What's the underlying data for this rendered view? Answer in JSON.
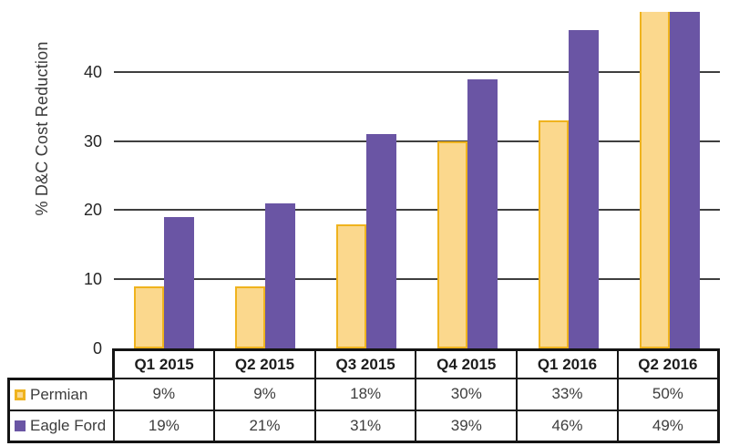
{
  "chart_data": {
    "type": "bar",
    "categories": [
      "Q1 2015",
      "Q2 2015",
      "Q3 2015",
      "Q4 2015",
      "Q1 2016",
      "Q2 2016"
    ],
    "series": [
      {
        "name": "Permian",
        "values": [
          9,
          9,
          18,
          30,
          33,
          50
        ]
      },
      {
        "name": "Eagle Ford",
        "values": [
          19,
          21,
          31,
          39,
          46,
          49
        ]
      }
    ],
    "title": "",
    "xlabel": "",
    "ylabel": "% D&C Cost Reduction",
    "yticks": [
      0,
      10,
      20,
      30,
      40
    ],
    "ylim": [
      0,
      48.7
    ],
    "grid": true,
    "units": "%",
    "legend_position": "table-left",
    "note": "Top bars (50% / 49%) are clipped at the top edge of the plot area"
  },
  "axis": {
    "ylabel": "% D&C Cost Reduction"
  },
  "table": {
    "headers": [
      "Q1 2015",
      "Q2 2015",
      "Q3 2015",
      "Q4 2015",
      "Q1 2016",
      "Q2 2016"
    ],
    "rows": [
      {
        "label": "Permian",
        "cells": [
          "9%",
          "9%",
          "18%",
          "30%",
          "33%",
          "50%"
        ]
      },
      {
        "label": "Eagle Ford",
        "cells": [
          "19%",
          "21%",
          "31%",
          "39%",
          "46%",
          "49%"
        ]
      }
    ]
  },
  "colors": {
    "permian_fill": "#FBD88D",
    "permian_border": "#EFB31E",
    "eagle_ford_fill": "#6A55A4",
    "gridline": "#3F3F3F",
    "table_border": "#141414",
    "header_text": "#1C1C1C",
    "value_text": "#3D3D3D"
  }
}
